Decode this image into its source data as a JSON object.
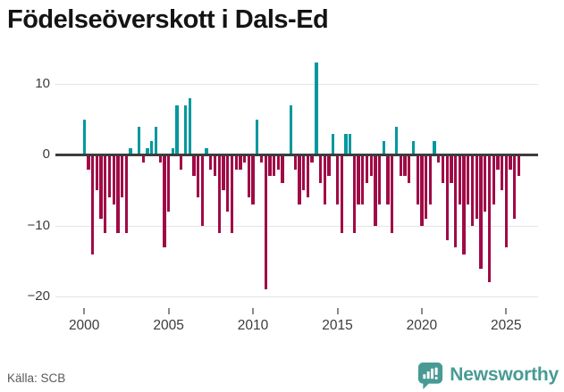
{
  "title": "Födelseöverskott i Dals-Ed",
  "footer": {
    "source": "Källa: SCB",
    "brand": "Newsworthy"
  },
  "colors": {
    "positive_bar": "#00989e",
    "negative_bar": "#a00a46",
    "zero_line": "#3d3d3d",
    "gridline": "#e4e4e4",
    "brand_teal": "#489b94"
  },
  "chart_data": {
    "type": "bar",
    "title": "Födelseöverskott i Dals-Ed",
    "xlabel": "",
    "ylabel": "",
    "frequency": "quarterly",
    "start_period": "2000-Q1",
    "end_period": "2025-Q4",
    "ylim": [
      -20.5,
      13.5
    ],
    "grid": true,
    "y_ticks": [
      10,
      0,
      -10,
      -20
    ],
    "y_tick_labels": [
      "10",
      "0",
      "−10",
      "−20"
    ],
    "x_tick_years": [
      2000,
      2005,
      2010,
      2015,
      2020,
      2025
    ],
    "x_tick_labels": [
      "2000",
      "2005",
      "2010",
      "2015",
      "2020",
      "2025"
    ],
    "values": [
      5,
      -2,
      -14,
      -5,
      -9,
      -11,
      -6,
      -7,
      -11,
      -6,
      -11,
      1,
      0,
      4,
      -1,
      1,
      2,
      4,
      -1,
      -13,
      -8,
      1,
      7,
      -2,
      7,
      8,
      -3,
      -6,
      -10,
      1,
      -2,
      -3,
      -11,
      -5,
      -8,
      -11,
      -2,
      -2,
      -1,
      -6,
      -7,
      5,
      -1,
      -19,
      -3,
      -3,
      -2,
      -4,
      0,
      7,
      -2,
      -7,
      -5,
      -6,
      -1,
      13,
      -4,
      -7,
      -3,
      3,
      -7,
      -11,
      3,
      3,
      -11,
      -7,
      -7,
      -4,
      -3,
      -10,
      -7,
      2,
      -7,
      -11,
      4,
      -3,
      -3,
      -4,
      2,
      -7,
      -10,
      -9,
      -7,
      2,
      -1,
      -4,
      -12,
      -4,
      -13,
      -7,
      -14,
      -7,
      -10,
      -9,
      -16,
      -8,
      -18,
      -7,
      -2,
      -5,
      -13,
      -2,
      -9,
      -3
    ]
  }
}
